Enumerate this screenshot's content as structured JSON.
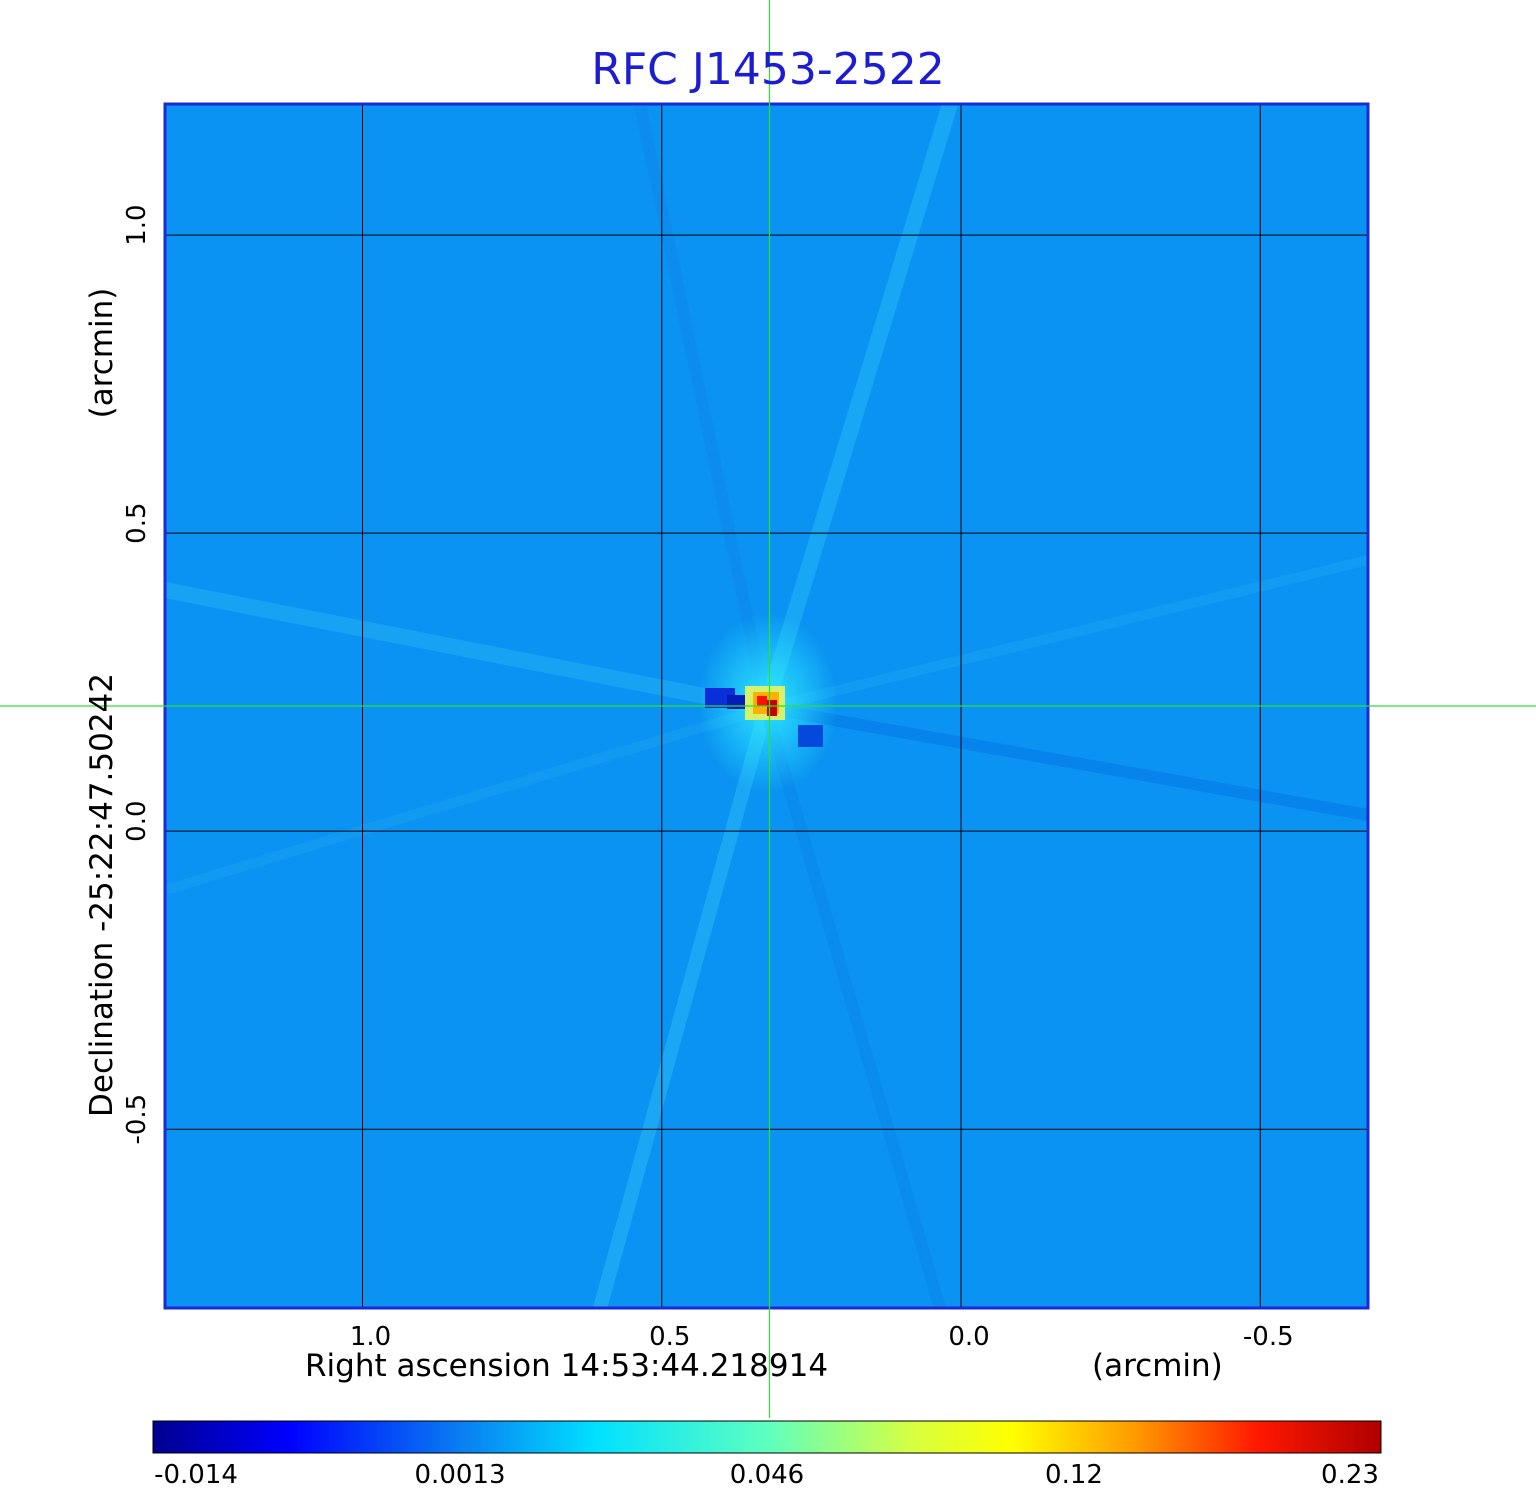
{
  "chart_data": {
    "type": "heatmap",
    "title": "RFC J1453-2522",
    "xlabel": "Right ascension  14:53:44.218914",
    "xlabel_unit": "(arcmin)",
    "ylabel": "Declination  -25:22:47.50242",
    "ylabel_unit": "(arcmin)",
    "x_axis_reversed": true,
    "xlim": [
      1.33,
      -0.68
    ],
    "ylim": [
      -0.8,
      1.22
    ],
    "x_ticks": [
      {
        "value": 1.0,
        "label": "1.0"
      },
      {
        "value": 0.5,
        "label": "0.5"
      },
      {
        "value": 0.0,
        "label": "0.0"
      },
      {
        "value": -0.5,
        "label": "-0.5"
      }
    ],
    "y_ticks": [
      {
        "value": 1.0,
        "label": "1.0"
      },
      {
        "value": 0.5,
        "label": "0.5"
      },
      {
        "value": 0.0,
        "label": "0.0"
      },
      {
        "value": -0.5,
        "label": "-0.5"
      }
    ],
    "grid": true,
    "crosshair": {
      "x": 0.32,
      "y": 0.21,
      "color": "#2ee02e"
    },
    "source_peak": {
      "x": 0.32,
      "y": 0.21,
      "value": 0.23
    },
    "colorbar": {
      "colormap": "jet",
      "min": -0.014,
      "max": 0.23,
      "tick_labels": [
        "-0.014",
        "0.0013",
        "0.046",
        "0.12",
        "0.23"
      ]
    },
    "background_value": 0.0013
  },
  "colors": {
    "title": "#1c1cd0",
    "frame": "#1a2ad8",
    "grid": "#000000",
    "background": "#0a93f2",
    "crosshair": "#2ee02e"
  }
}
